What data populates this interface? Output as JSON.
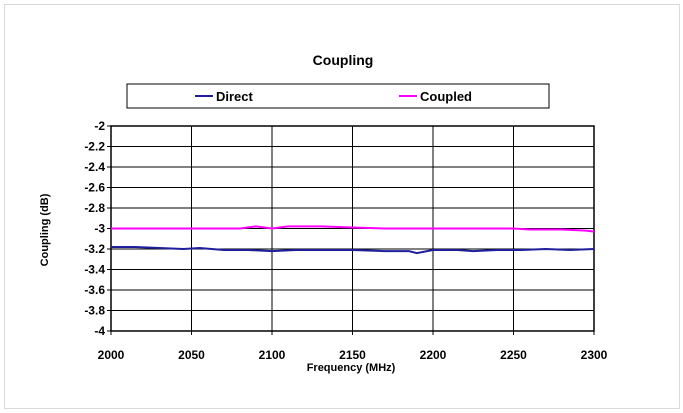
{
  "chart_data": {
    "type": "line",
    "title": "Coupling",
    "xlabel": "Frequency (MHz)",
    "ylabel": "Coupling (dB)",
    "xlim": [
      2000,
      2300
    ],
    "ylim": [
      -4,
      -2
    ],
    "x_ticks": [
      2000,
      2050,
      2100,
      2150,
      2200,
      2250,
      2300
    ],
    "y_ticks": [
      -2,
      -2.2,
      -2.4,
      -2.6,
      -2.8,
      -3,
      -3.2,
      -3.4,
      -3.6,
      -3.8,
      -4
    ],
    "x_tick_labels": [
      "2000",
      "2050",
      "2100",
      "2150",
      "2200",
      "2250",
      "2300"
    ],
    "y_tick_labels": [
      "-2",
      "-2.2",
      "-2.4",
      "-2.6",
      "-2.8",
      "-3",
      "-3.2",
      "-3.4",
      "-3.6",
      "-3.8",
      "-4"
    ],
    "grid": true,
    "legend_position": "top",
    "series": [
      {
        "name": "Direct",
        "color": "#1f1f9e",
        "x": [
          2000,
          2015,
          2030,
          2045,
          2055,
          2070,
          2085,
          2100,
          2115,
          2130,
          2150,
          2170,
          2185,
          2190,
          2200,
          2215,
          2225,
          2240,
          2255,
          2270,
          2285,
          2300
        ],
        "y": [
          -3.18,
          -3.18,
          -3.19,
          -3.2,
          -3.19,
          -3.21,
          -3.21,
          -3.22,
          -3.21,
          -3.21,
          -3.21,
          -3.22,
          -3.22,
          -3.24,
          -3.21,
          -3.21,
          -3.22,
          -3.21,
          -3.21,
          -3.2,
          -3.21,
          -3.2
        ]
      },
      {
        "name": "Coupled",
        "color": "#ff00ff",
        "x": [
          2000,
          2020,
          2040,
          2060,
          2080,
          2090,
          2100,
          2110,
          2130,
          2150,
          2170,
          2190,
          2210,
          2230,
          2250,
          2260,
          2280,
          2295,
          2300
        ],
        "y": [
          -3.0,
          -3.0,
          -3.0,
          -3.0,
          -3.0,
          -2.98,
          -3.0,
          -2.98,
          -2.98,
          -2.99,
          -3.0,
          -3.0,
          -3.0,
          -3.0,
          -3.0,
          -3.01,
          -3.01,
          -3.02,
          -3.03
        ]
      }
    ]
  }
}
